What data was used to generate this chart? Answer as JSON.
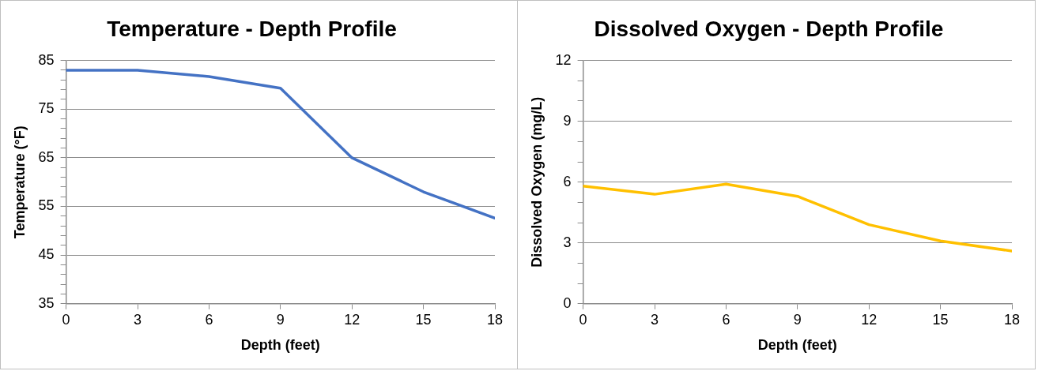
{
  "chart_data": [
    {
      "type": "line",
      "title": "Temperature - Depth Profile",
      "xlabel": "Depth (feet)",
      "ylabel": "Temperature (°F)",
      "x": [
        0,
        3,
        6,
        9,
        12,
        15,
        18
      ],
      "series": [
        {
          "color": "#4472c4",
          "values": [
            83,
            83,
            81.7,
            79.3,
            65,
            58,
            52.6
          ]
        }
      ],
      "xlim": [
        0,
        18
      ],
      "xticks": [
        0,
        3,
        6,
        9,
        12,
        15,
        18
      ],
      "ylim": [
        35,
        85
      ],
      "yticks": [
        35,
        {
          "value": 37,
          "label": null
        },
        {
          "value": 39,
          "label": null
        },
        {
          "value": 41,
          "label": null
        },
        {
          "value": 43,
          "label": null
        },
        45,
        {
          "value": 47,
          "label": null
        },
        {
          "value": 49,
          "label": null
        },
        {
          "value": 51,
          "label": null
        },
        {
          "value": 53,
          "label": null
        },
        55,
        {
          "value": 57,
          "label": null
        },
        {
          "value": 59,
          "label": null
        },
        {
          "value": 61,
          "label": null
        },
        {
          "value": 63,
          "label": null
        },
        65,
        {
          "value": 67,
          "label": null
        },
        {
          "value": 69,
          "label": null
        },
        {
          "value": 71,
          "label": null
        },
        {
          "value": 73,
          "label": null
        },
        75,
        {
          "value": 77,
          "label": null
        },
        {
          "value": 79,
          "label": null
        },
        {
          "value": 81,
          "label": null
        },
        {
          "value": 83,
          "label": null
        },
        85
      ],
      "grid": "y",
      "marker": "none",
      "line_style": "solid"
    },
    {
      "type": "line",
      "title": "Dissolved Oxygen - Depth Profile",
      "xlabel": "Depth (feet)",
      "ylabel": "Dissolved Oxygen (mg/L)",
      "x": [
        0,
        3,
        6,
        9,
        12,
        15,
        18
      ],
      "series": [
        {
          "color": "#ffc000",
          "values": [
            5.8,
            5.4,
            5.9,
            5.3,
            3.9,
            3.1,
            2.6
          ]
        }
      ],
      "xlim": [
        0,
        18
      ],
      "xticks": [
        0,
        3,
        6,
        9,
        12,
        15,
        18
      ],
      "ylim": [
        0,
        12
      ],
      "yticks": [
        0,
        {
          "value": 1,
          "label": null
        },
        {
          "value": 2,
          "label": null
        },
        3,
        {
          "value": 4,
          "label": null
        },
        {
          "value": 5,
          "label": null
        },
        6,
        {
          "value": 7,
          "label": null
        },
        {
          "value": 8,
          "label": null
        },
        9,
        {
          "value": 10,
          "label": null
        },
        {
          "value": 11,
          "label": null
        },
        12
      ],
      "grid": "y",
      "marker": "none",
      "line_style": "solid"
    }
  ]
}
